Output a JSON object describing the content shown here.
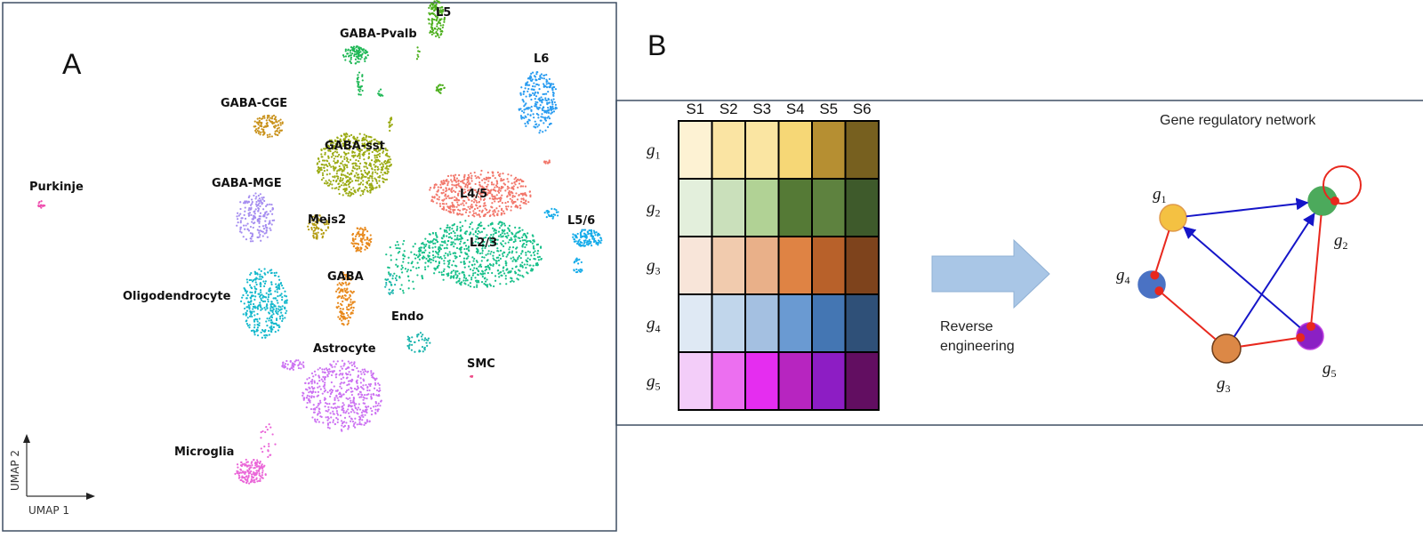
{
  "panel_a": {
    "label": "A",
    "x_axis": "UMAP 1",
    "y_axis": "UMAP 2",
    "clusters": [
      {
        "name": "L5",
        "color": "#4caf1c"
      },
      {
        "name": "GABA-Pvalb",
        "color": "#1fb856"
      },
      {
        "name": "L6",
        "color": "#2a9cf0"
      },
      {
        "name": "GABA-CGE",
        "color": "#c9921c"
      },
      {
        "name": "GABA-sst",
        "color": "#9bab14"
      },
      {
        "name": "Purkinje",
        "color": "#ee4fae"
      },
      {
        "name": "GABA-MGE",
        "color": "#a58df0"
      },
      {
        "name": "Meis2",
        "color": "#b49c12"
      },
      {
        "name": "L4/5",
        "color": "#f2776b"
      },
      {
        "name": "L2/3",
        "color": "#18c08a"
      },
      {
        "name": "L5/6",
        "color": "#14abe9"
      },
      {
        "name": "GABA",
        "color": "#e8891c"
      },
      {
        "name": "Endo",
        "color": "#1ab4ad"
      },
      {
        "name": "Oligodendrocyte",
        "color": "#14b8cc"
      },
      {
        "name": "Astrocyte",
        "color": "#cc72f2"
      },
      {
        "name": "SMC",
        "color": "#ee4f8a"
      },
      {
        "name": "Microglia",
        "color": "#ea66d8"
      }
    ]
  },
  "panel_b": {
    "label": "B",
    "heatmap": {
      "columns": [
        "S1",
        "S2",
        "S3",
        "S4",
        "S5",
        "S6"
      ],
      "rows": [
        {
          "gene": "g",
          "sub": "1",
          "colors": [
            "#fdf2d3",
            "#fae4a3",
            "#fae5a2",
            "#f6d776",
            "#b68f32",
            "#77601f"
          ]
        },
        {
          "gene": "g",
          "sub": "2",
          "colors": [
            "#e3efdc",
            "#cae0bb",
            "#b1d295",
            "#557a36",
            "#5e823f",
            "#3e5a2b"
          ]
        },
        {
          "gene": "g",
          "sub": "3",
          "colors": [
            "#f8e5d9",
            "#f1cbae",
            "#e9b089",
            "#df8344",
            "#b8612a",
            "#7e431c"
          ]
        },
        {
          "gene": "g",
          "sub": "4",
          "colors": [
            "#dfe9f4",
            "#c1d6eb",
            "#a4c0e1",
            "#6a9ad2",
            "#4476b3",
            "#2f5078"
          ]
        },
        {
          "gene": "g",
          "sub": "5",
          "colors": [
            "#f3cdf9",
            "#ec6ff0",
            "#e52df0",
            "#b725c0",
            "#8d1dc4",
            "#620e61"
          ]
        }
      ]
    },
    "arrow_text": [
      "Reverse",
      "engineering"
    ],
    "network": {
      "title": "Gene regulatory network",
      "nodes": [
        {
          "id": "g1",
          "gene": "g",
          "sub": "1",
          "color": "#f4c142",
          "stroke": "#e09a4a"
        },
        {
          "id": "g2",
          "gene": "g",
          "sub": "2",
          "color": "#4caa5c",
          "stroke": "#4caa5c"
        },
        {
          "id": "g3",
          "gene": "g",
          "sub": "3",
          "color": "#dc8846",
          "stroke": "#6b3a16"
        },
        {
          "id": "g4",
          "gene": "g",
          "sub": "4",
          "color": "#4a72c4",
          "stroke": "#4a72c4"
        },
        {
          "id": "g5",
          "gene": "g",
          "sub": "5",
          "color": "#8b20c4",
          "stroke": "#c040e0"
        }
      ],
      "edges": [
        {
          "from": "g1",
          "to": "g2",
          "type": "activation",
          "color": "#1515c8"
        },
        {
          "from": "g3",
          "to": "g2",
          "type": "activation",
          "color": "#1515c8"
        },
        {
          "from": "g5",
          "to": "g1",
          "type": "activation",
          "color": "#1515c8"
        },
        {
          "from": "g1",
          "to": "g4",
          "type": "inhibition",
          "color": "#e8281e"
        },
        {
          "from": "g3",
          "to": "g4",
          "type": "inhibition",
          "color": "#e8281e"
        },
        {
          "from": "g2",
          "to": "g5",
          "type": "inhibition",
          "color": "#e8281e"
        },
        {
          "from": "g3",
          "to": "g5",
          "type": "inhibition",
          "color": "#e8281e"
        },
        {
          "from": "g2",
          "to": "g2",
          "type": "inhibition",
          "color": "#e8281e"
        }
      ]
    }
  }
}
